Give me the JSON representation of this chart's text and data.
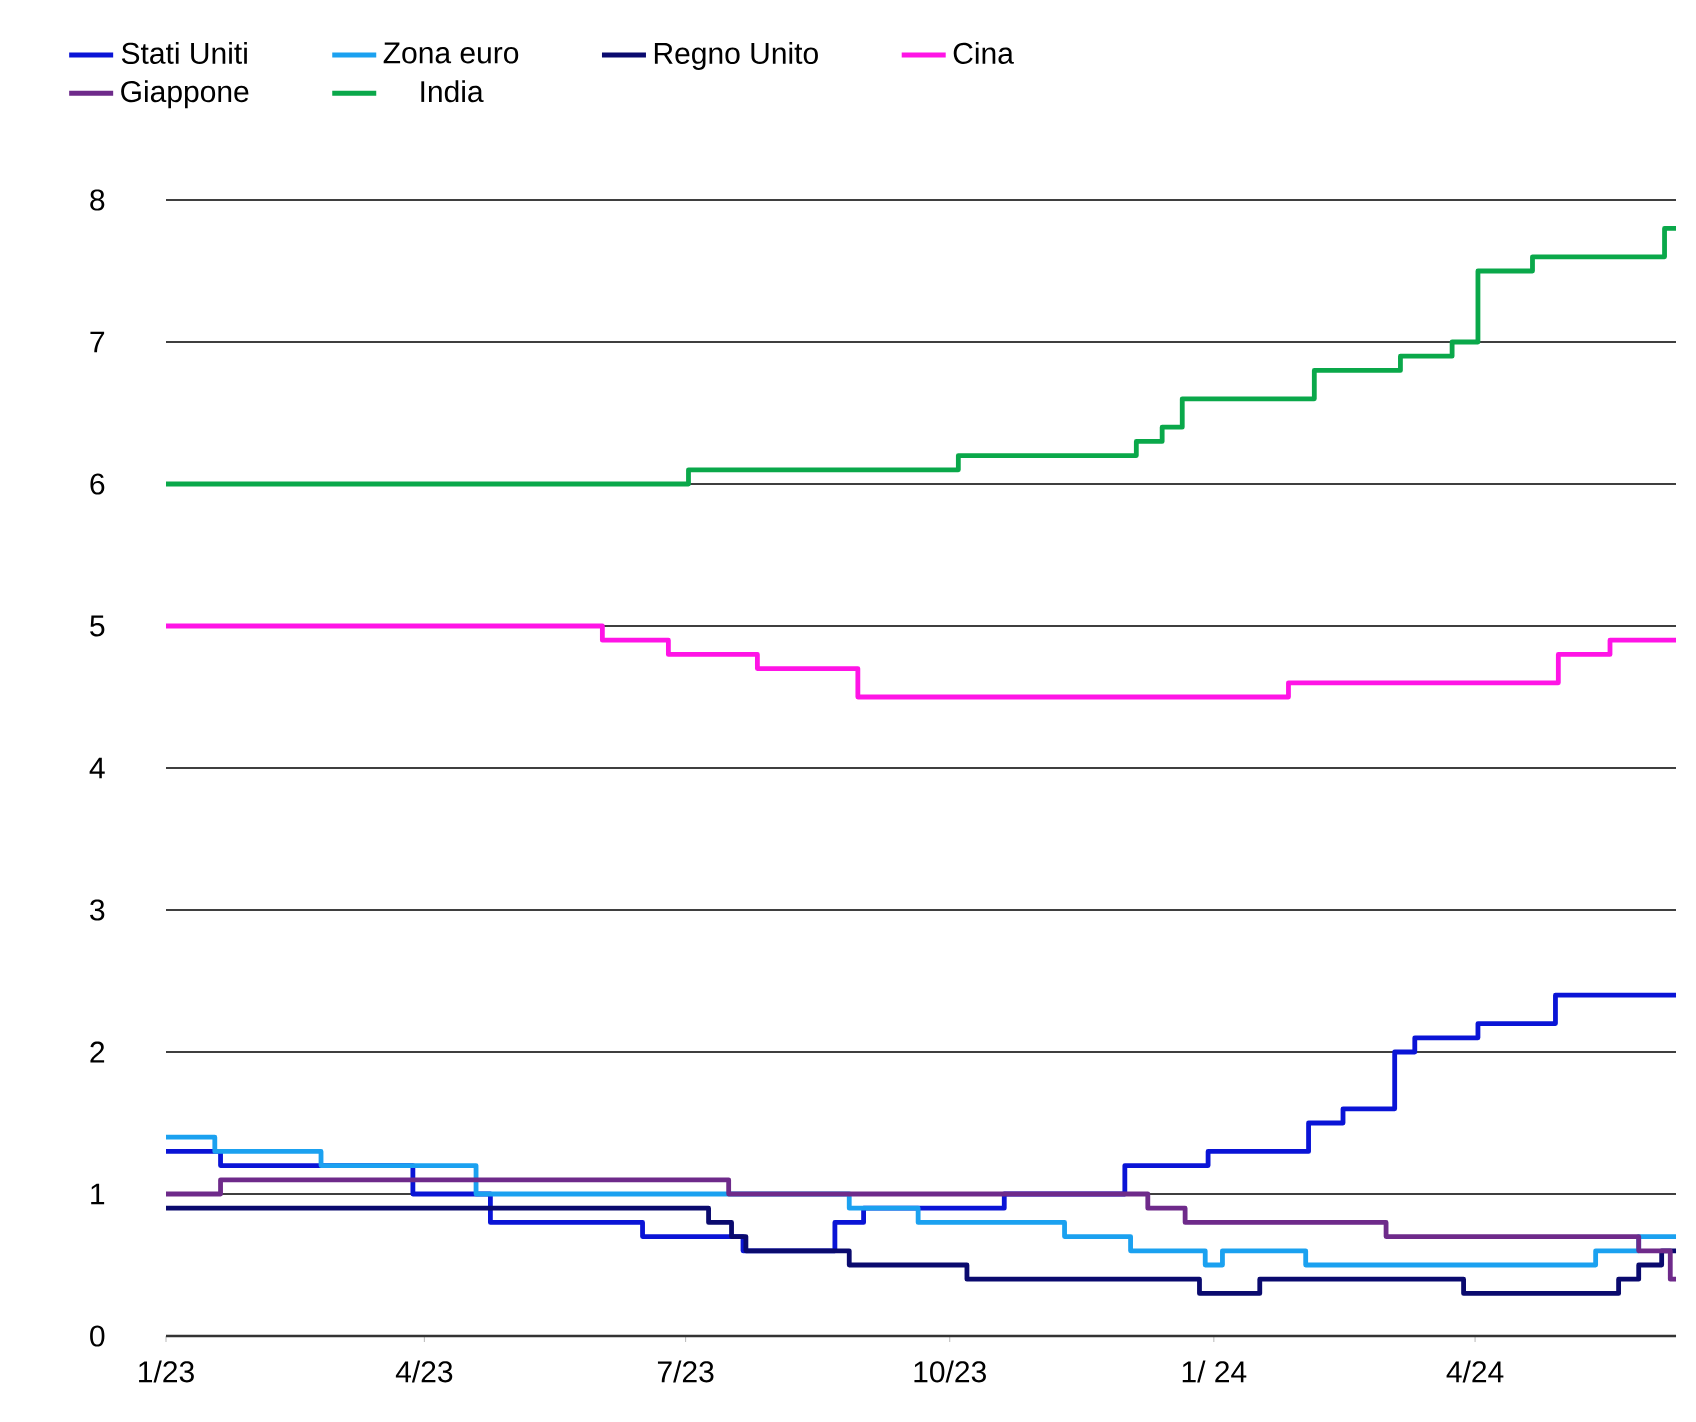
{
  "chart_data": {
    "type": "step",
    "xlim": [
      "2023-01-01",
      "2024-06-10"
    ],
    "xticks": [
      {
        "value": "2023-01-01",
        "label": "1/23"
      },
      {
        "value": "2023-04-01",
        "label": "4/23"
      },
      {
        "value": "2023-07-01",
        "label": "7/23"
      },
      {
        "value": "2023-10-01",
        "label": "10/23"
      },
      {
        "value": "2024-01-01",
        "label": "1/ 24"
      },
      {
        "value": "2024-04-01",
        "label": "4/24"
      }
    ],
    "ylim": [
      0,
      8
    ],
    "yticks": [
      0,
      1,
      2,
      3,
      4,
      5,
      6,
      7,
      8
    ],
    "grid": "y",
    "legend": "top",
    "series": [
      {
        "name": "Stati Uniti",
        "color": "#0a14d6",
        "x": [
          "2023-01-01",
          "2023-01-20",
          "2023-03-28",
          "2023-04-24",
          "2023-06-16",
          "2023-07-21",
          "2023-08-22",
          "2023-09-01",
          "2023-10-20",
          "2023-12-01",
          "2023-12-30",
          "2024-02-03",
          "2024-02-15",
          "2024-03-04",
          "2024-03-11",
          "2024-04-02",
          "2024-04-29",
          "2024-06-10"
        ],
        "values": [
          1.3,
          1.2,
          1.0,
          0.8,
          0.7,
          0.6,
          0.8,
          0.9,
          1.0,
          1.2,
          1.3,
          1.5,
          1.6,
          2.0,
          2.1,
          2.2,
          2.4,
          2.4
        ]
      },
      {
        "name": "Zona euro",
        "color": "#1ba1f0",
        "x": [
          "2023-01-01",
          "2023-01-18",
          "2023-02-24",
          "2023-04-19",
          "2023-08-27",
          "2023-09-20",
          "2023-11-10",
          "2023-12-03",
          "2023-12-29",
          "2024-01-04",
          "2024-02-02",
          "2024-05-13",
          "2024-05-28",
          "2024-06-10"
        ],
        "values": [
          1.4,
          1.3,
          1.2,
          1.0,
          0.9,
          0.8,
          0.7,
          0.6,
          0.5,
          0.6,
          0.5,
          0.6,
          0.7,
          0.7
        ]
      },
      {
        "name": "Regno Unito",
        "color": "#0a0a6e",
        "x": [
          "2023-01-01",
          "2023-07-09",
          "2023-07-17",
          "2023-07-22",
          "2023-08-27",
          "2023-10-07",
          "2023-12-27",
          "2024-01-17",
          "2024-03-28",
          "2024-05-21",
          "2024-05-28",
          "2024-06-05",
          "2024-06-10"
        ],
        "values": [
          0.9,
          0.8,
          0.7,
          0.6,
          0.5,
          0.4,
          0.3,
          0.4,
          0.3,
          0.4,
          0.5,
          0.6,
          0.6
        ]
      },
      {
        "name": "Cina",
        "color": "#ff14e6",
        "x": [
          "2023-01-01",
          "2023-06-02",
          "2023-06-25",
          "2023-07-26",
          "2023-08-30",
          "2024-01-27",
          "2024-04-30",
          "2024-05-18",
          "2024-06-10"
        ],
        "values": [
          5.0,
          4.9,
          4.8,
          4.7,
          4.5,
          4.6,
          4.8,
          4.9,
          4.9
        ]
      },
      {
        "name": "Giappone",
        "color": "#6e2a8a",
        "x": [
          "2023-01-01",
          "2023-01-20",
          "2023-07-16",
          "2023-12-09",
          "2023-12-22",
          "2024-03-01",
          "2024-05-28",
          "2024-06-08",
          "2024-06-10"
        ],
        "values": [
          1.0,
          1.1,
          1.0,
          0.9,
          0.8,
          0.7,
          0.6,
          0.4,
          0.4
        ]
      },
      {
        "name": "India",
        "color": "#0aa84a",
        "x": [
          "2023-01-01",
          "2023-07-02",
          "2023-10-04",
          "2023-12-05",
          "2023-12-14",
          "2023-12-21",
          "2024-02-05",
          "2024-03-06",
          "2024-03-24",
          "2024-04-02",
          "2024-04-21",
          "2024-06-06",
          "2024-06-10"
        ],
        "values": [
          6.0,
          6.1,
          6.2,
          6.3,
          6.4,
          6.6,
          6.8,
          6.9,
          7.0,
          7.5,
          7.6,
          7.8,
          7.8
        ]
      }
    ]
  }
}
